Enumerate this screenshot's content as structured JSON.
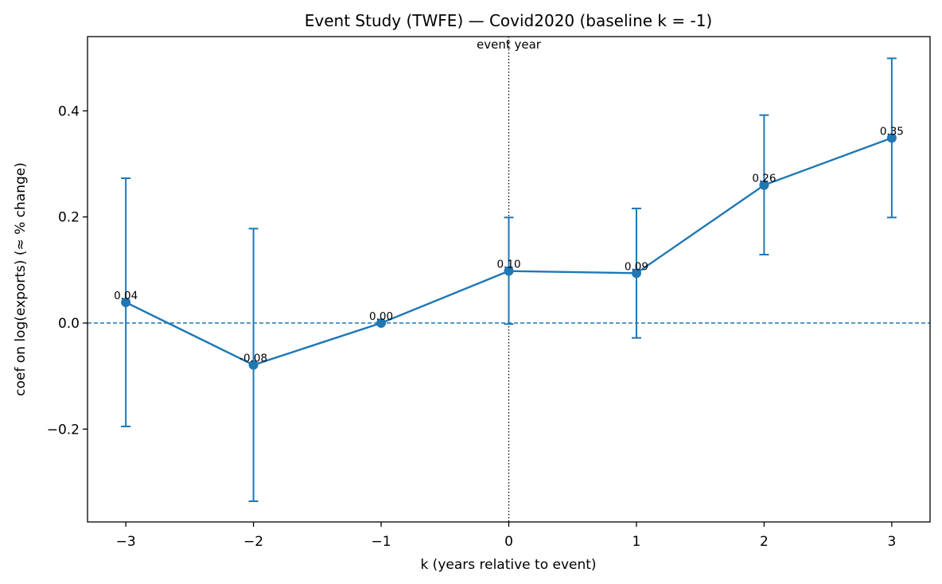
{
  "chart_data": {
    "type": "line",
    "title": "Event Study (TWFE) — Covid2020  (baseline k = -1)",
    "xlabel": "k (years relative to event)",
    "ylabel": "coef on log(exports)  (≈ % change)",
    "xlim": [
      -3.3,
      3.3
    ],
    "ylim": [
      -0.375,
      0.54
    ],
    "xticks": [
      -3,
      -2,
      -1,
      0,
      1,
      2,
      3
    ],
    "xtick_labels": [
      "−3",
      "−2",
      "−1",
      "0",
      "1",
      "2",
      "3"
    ],
    "yticks": [
      -0.2,
      0.0,
      0.2,
      0.4
    ],
    "ytick_labels": [
      "−0.2",
      "0.0",
      "0.2",
      "0.4"
    ],
    "series": [
      {
        "x": [
          -3,
          -2,
          -1,
          0,
          1,
          2,
          3
        ],
        "values": [
          0.039,
          -0.079,
          0.0,
          0.098,
          0.094,
          0.26,
          0.349
        ],
        "ci_low": [
          -0.195,
          -0.336,
          0.0,
          -0.002,
          -0.028,
          0.129,
          0.199
        ],
        "ci_high": [
          0.273,
          0.178,
          0.0,
          0.199,
          0.216,
          0.392,
          0.499
        ],
        "labels": [
          "0.04",
          "-0.08",
          "0.00",
          "0.10",
          "0.09",
          "0.26",
          "0.35"
        ],
        "color": "#1f77b4"
      }
    ],
    "reference_lines": {
      "horizontal_zero": {
        "y": 0,
        "style": "dashed",
        "color": "#1f77b4"
      },
      "event_vertical": {
        "x": 0,
        "style": "dotted",
        "color": "#000000",
        "label": "event year"
      }
    },
    "grid": false,
    "legend": "none"
  }
}
